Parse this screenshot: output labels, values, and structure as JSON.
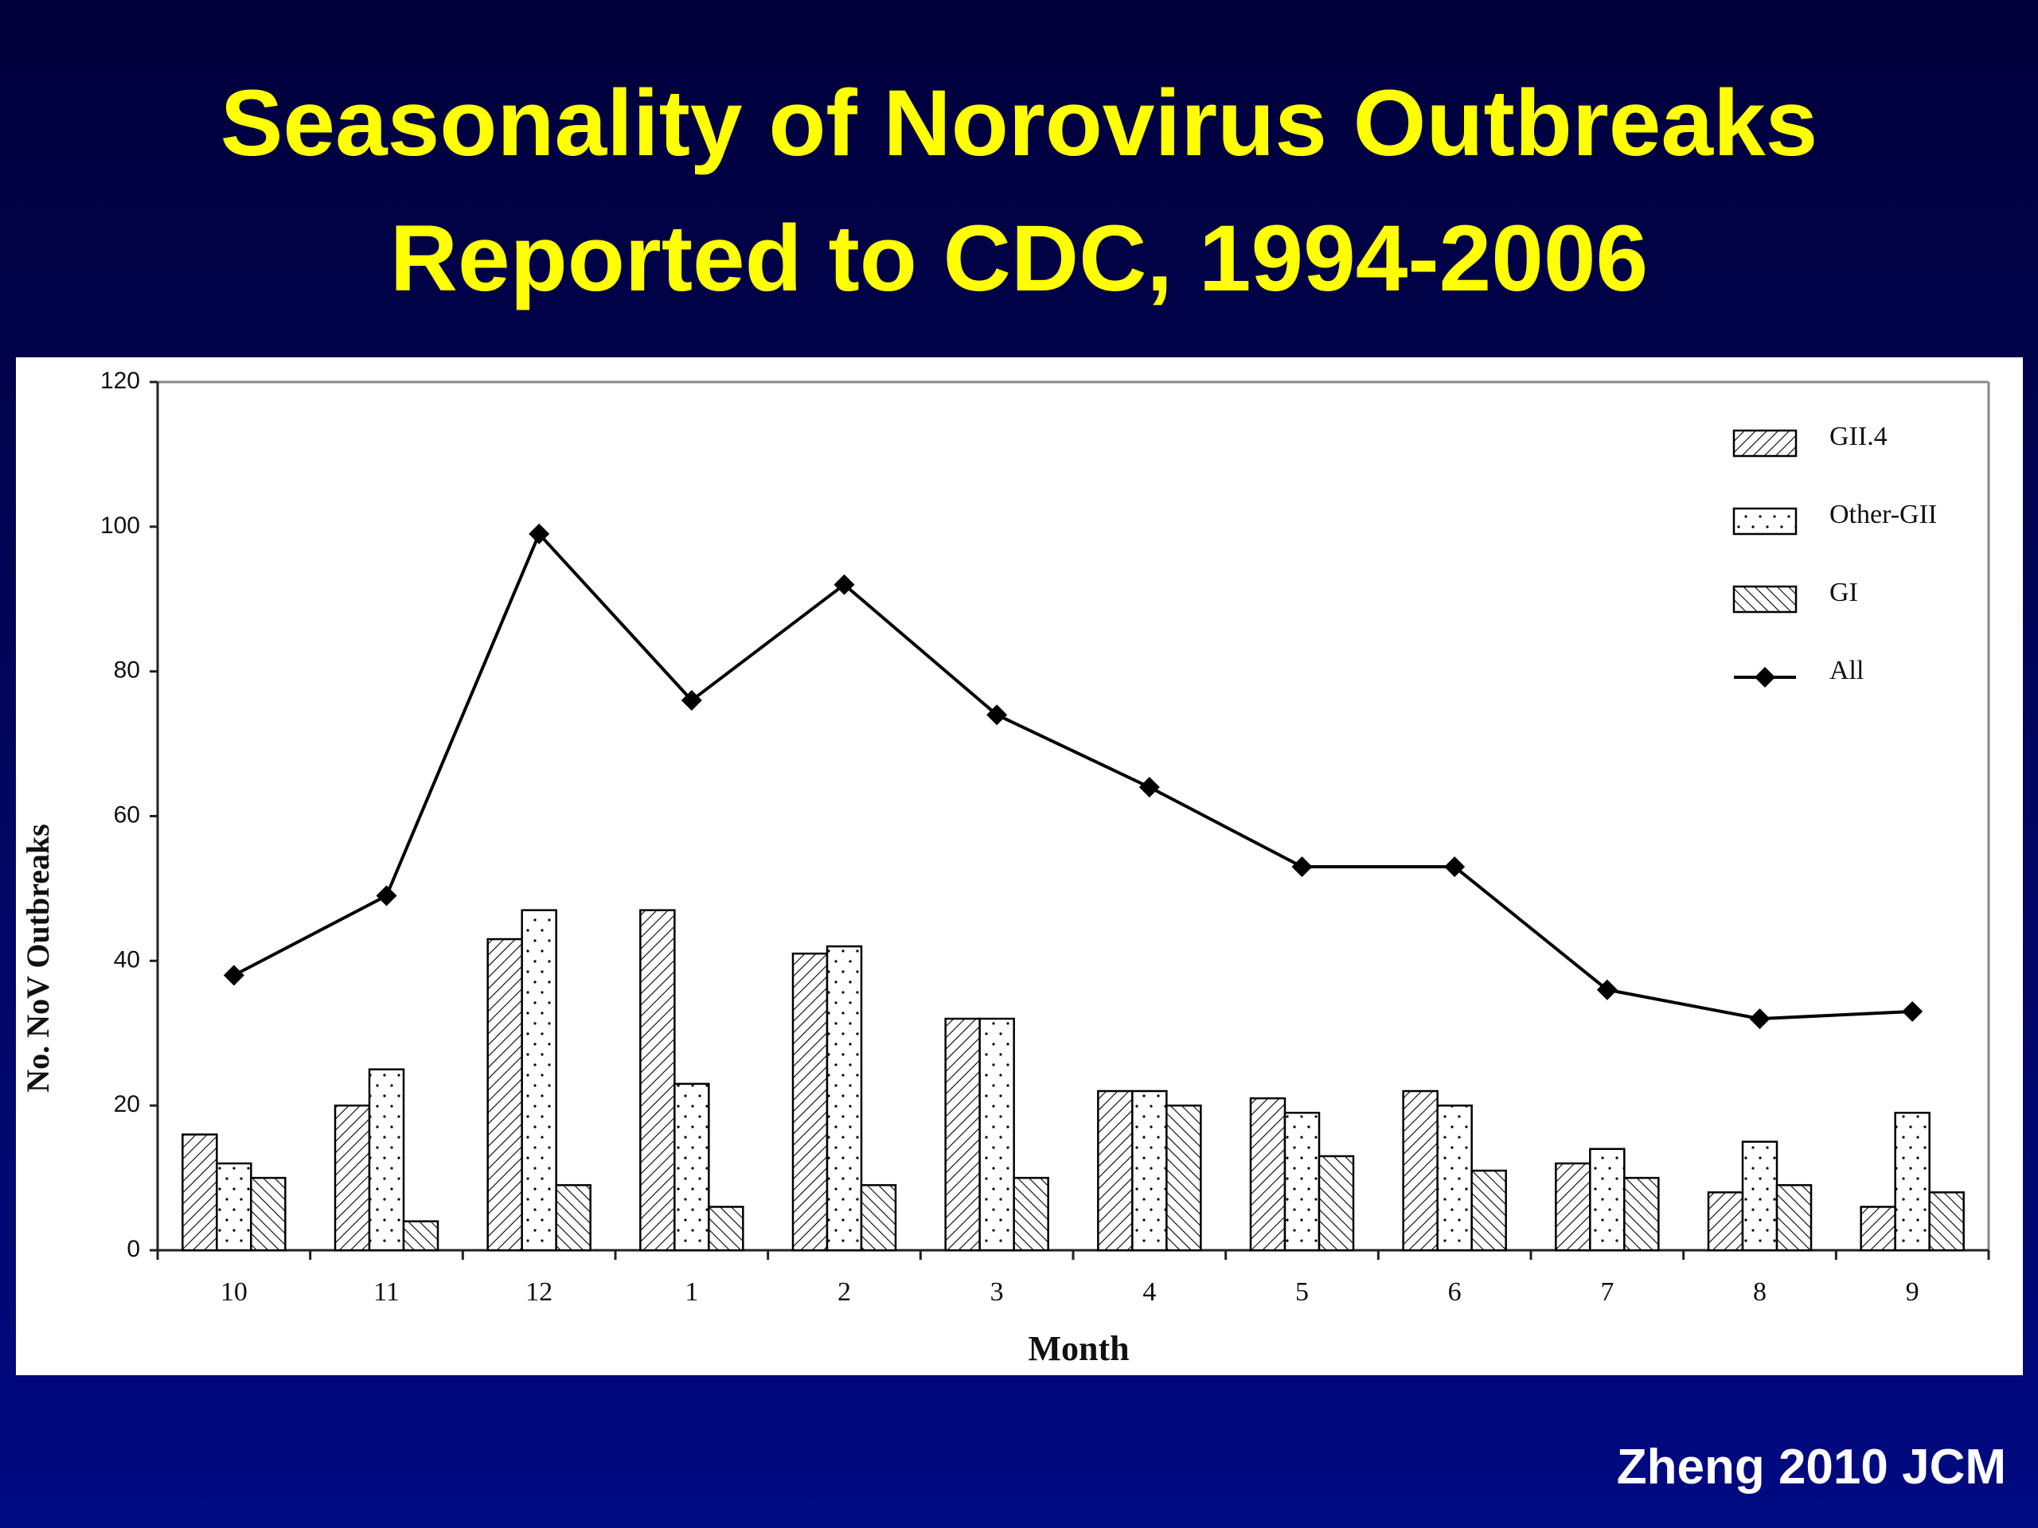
{
  "chart_data": {
    "type": "bar",
    "title": "Seasonality of Norovirus Outbreaks Reported to CDC, 1994-2006",
    "x_label": "Month",
    "y_label": "No. NoV Outbreaks",
    "categories": [
      "10",
      "11",
      "12",
      "1",
      "2",
      "3",
      "4",
      "5",
      "6",
      "7",
      "8",
      "9"
    ],
    "series": [
      {
        "name": "GII.4",
        "color": "#000000",
        "pattern": "hatch",
        "values": [
          16,
          20,
          43,
          47,
          41,
          32,
          22,
          21,
          22,
          12,
          8,
          6
        ]
      },
      {
        "name": "Other-GII",
        "color": "#000000",
        "pattern": "dots",
        "values": [
          12,
          25,
          47,
          23,
          42,
          32,
          22,
          19,
          20,
          14,
          15,
          19
        ]
      },
      {
        "name": "GI",
        "color": "#000000",
        "pattern": "backhatch",
        "values": [
          10,
          4,
          9,
          6,
          9,
          10,
          20,
          13,
          11,
          10,
          9,
          8
        ]
      },
      {
        "name": "All",
        "color": "#000000",
        "type": "line",
        "marker": "diamond",
        "values": [
          38,
          49,
          99,
          76,
          92,
          74,
          64,
          53,
          53,
          36,
          32,
          33
        ]
      }
    ],
    "ylim": [
      0,
      120
    ],
    "yticks": [
      0,
      20,
      40,
      60,
      80,
      100,
      120
    ],
    "grid": false,
    "legend": "upper right",
    "source": "Zheng 2010 JCM"
  }
}
